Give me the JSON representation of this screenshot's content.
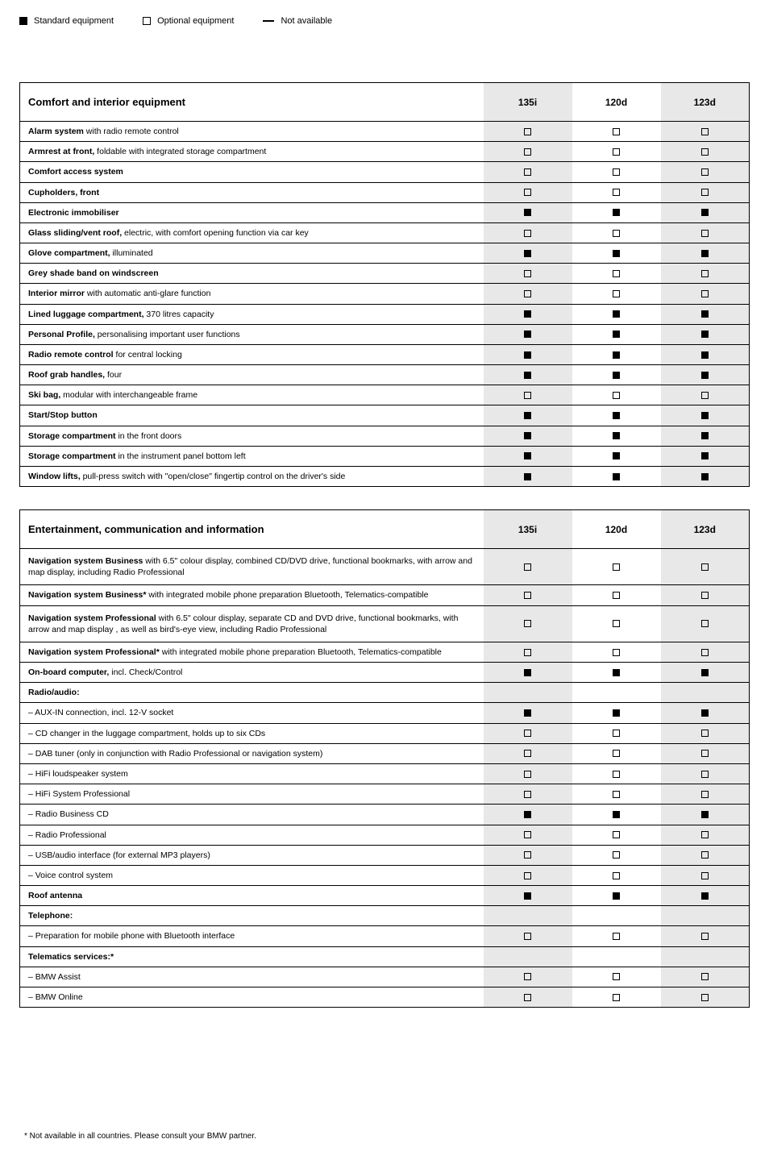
{
  "legend": {
    "standard": "Standard equipment",
    "optional": "Optional equipment",
    "na": "Not available"
  },
  "glyph": {
    "std": "std",
    "opt": "opt",
    "na": "na"
  },
  "columns": [
    "135i",
    "120d",
    "123d"
  ],
  "tables": [
    {
      "title": "Comfort and interior equipment",
      "rows": [
        {
          "html": "<b>Alarm system</b> with radio remote control",
          "v": [
            "opt",
            "opt",
            "opt"
          ]
        },
        {
          "html": "<b>Armrest at front,</b> foldable with integrated storage compartment",
          "v": [
            "opt",
            "opt",
            "opt"
          ]
        },
        {
          "html": "<b>Comfort access system</b>",
          "v": [
            "opt",
            "opt",
            "opt"
          ]
        },
        {
          "html": "<b>Cupholders, front</b>",
          "v": [
            "opt",
            "opt",
            "opt"
          ]
        },
        {
          "html": "<b>Electronic immobiliser</b>",
          "v": [
            "std",
            "std",
            "std"
          ]
        },
        {
          "html": "<b>Glass sliding/vent roof,</b> electric, with comfort opening function via car key",
          "v": [
            "opt",
            "opt",
            "opt"
          ]
        },
        {
          "html": "<b>Glove compartment,</b> illuminated",
          "v": [
            "std",
            "std",
            "std"
          ]
        },
        {
          "html": "<b>Grey shade band on windscreen</b>",
          "v": [
            "opt",
            "opt",
            "opt"
          ]
        },
        {
          "html": "<b>Interior mirror</b> with automatic anti-glare function",
          "v": [
            "opt",
            "opt",
            "opt"
          ]
        },
        {
          "html": "<b>Lined luggage compartment,</b> 370 litres capacity",
          "v": [
            "std",
            "std",
            "std"
          ]
        },
        {
          "html": "<b>Personal Profile,</b> personalising important user functions",
          "v": [
            "std",
            "std",
            "std"
          ]
        },
        {
          "html": "<b>Radio remote control</b> for central locking",
          "v": [
            "std",
            "std",
            "std"
          ]
        },
        {
          "html": "<b>Roof grab handles,</b> four",
          "v": [
            "std",
            "std",
            "std"
          ]
        },
        {
          "html": "<b>Ski bag,</b> modular with interchangeable frame",
          "v": [
            "opt",
            "opt",
            "opt"
          ]
        },
        {
          "html": "<b>Start/Stop button</b>",
          "v": [
            "std",
            "std",
            "std"
          ]
        },
        {
          "html": "<b>Storage compartment</b> in the front doors",
          "v": [
            "std",
            "std",
            "std"
          ]
        },
        {
          "html": "<b>Storage compartment</b> in the instrument panel bottom left",
          "v": [
            "std",
            "std",
            "std"
          ]
        },
        {
          "html": "<b>Window lifts,</b> pull-press switch with \"open/close\" fingertip control on the driver's side",
          "v": [
            "std",
            "std",
            "std"
          ]
        }
      ]
    },
    {
      "title": "Entertainment, communication and information",
      "rows": [
        {
          "html": "<b>Navigation system Business</b> with 6.5\" colour display, combined CD/DVD drive, functional bookmarks, with arrow and map display, including Radio Professional",
          "v": [
            "opt",
            "opt",
            "opt"
          ],
          "tall": true
        },
        {
          "html": "<b>Navigation system Business*</b> with integrated mobile phone preparation Bluetooth, Telematics-compatible",
          "v": [
            "opt",
            "opt",
            "opt"
          ]
        },
        {
          "html": "<b>Navigation system Professional</b> with 6.5\" colour display, separate CD and DVD drive, functional bookmarks, with arrow and map display , as well as bird's-eye view, including Radio Professional",
          "v": [
            "opt",
            "opt",
            "opt"
          ],
          "tall": true
        },
        {
          "html": "<b>Navigation system Professional*</b> with integrated mobile phone preparation Bluetooth, Telematics-compatible",
          "v": [
            "opt",
            "opt",
            "opt"
          ]
        },
        {
          "html": "<b>On-board computer,</b> incl. Check/Control",
          "v": [
            "std",
            "std",
            "std"
          ]
        },
        {
          "html": "<b>Radio/audio:</b>",
          "subhead": true
        },
        {
          "html": "– AUX-IN connection, incl. 12-V socket",
          "v": [
            "std",
            "std",
            "std"
          ]
        },
        {
          "html": "– CD changer in the luggage compartment, holds up to six CDs",
          "v": [
            "opt",
            "opt",
            "opt"
          ]
        },
        {
          "html": "– DAB tuner (only in conjunction with Radio Professional or navigation system)",
          "v": [
            "opt",
            "opt",
            "opt"
          ]
        },
        {
          "html": "– HiFi loudspeaker system",
          "v": [
            "opt",
            "opt",
            "opt"
          ]
        },
        {
          "html": "– HiFi System Professional",
          "v": [
            "opt",
            "opt",
            "opt"
          ]
        },
        {
          "html": "– Radio Business CD",
          "v": [
            "std",
            "std",
            "std"
          ]
        },
        {
          "html": "– Radio Professional",
          "v": [
            "opt",
            "opt",
            "opt"
          ]
        },
        {
          "html": "– USB/audio interface (for external MP3 players)",
          "v": [
            "opt",
            "opt",
            "opt"
          ]
        },
        {
          "html": "– Voice control system",
          "v": [
            "opt",
            "opt",
            "opt"
          ]
        },
        {
          "html": "<b>Roof antenna</b>",
          "v": [
            "std",
            "std",
            "std"
          ]
        },
        {
          "html": "<b>Telephone:</b>",
          "subhead": true
        },
        {
          "html": "– Preparation for mobile phone with Bluetooth interface",
          "v": [
            "opt",
            "opt",
            "opt"
          ]
        },
        {
          "html": "<b>Telematics services:*</b>",
          "subhead": true
        },
        {
          "html": "– BMW Assist",
          "v": [
            "opt",
            "opt",
            "opt"
          ]
        },
        {
          "html": "– BMW Online",
          "v": [
            "opt",
            "opt",
            "opt"
          ]
        }
      ]
    }
  ],
  "footnote": "* Not available in all countries. Please consult your BMW partner."
}
